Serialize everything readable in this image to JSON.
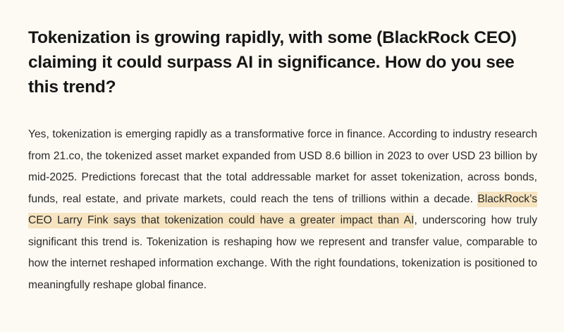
{
  "article": {
    "question": "Tokenization is growing rapidly, with some (BlackRock CEO) claiming it could surpass AI in significance. How do you see this trend?",
    "answer": {
      "before_highlight": "Yes, tokenization is emerging rapidly as a transformative force in finance. According to industry research from 21.co, the tokenized asset market expanded from USD 8.6 billion in 2023 to over USD 23 billion by mid-2025. Predictions forecast that the total addressable market for asset tokenization, across bonds, funds, real estate, and private markets, could reach the tens of trillions within a decade. ",
      "highlight": "BlackRock’s CEO Larry Fink says that tokenization could have a greater impact than AI",
      "after_highlight": ", underscoring how truly significant this trend is. Tokenization is reshaping how we represent and transfer value, comparable to how the internet reshaped information exchange. With the right foundations, tokenization is positioned to meaningfully reshape global finance."
    }
  },
  "colors": {
    "background": "#fdfaf3",
    "highlight": "#f6e4c0",
    "text": "#2a2a2a",
    "heading": "#161616"
  }
}
